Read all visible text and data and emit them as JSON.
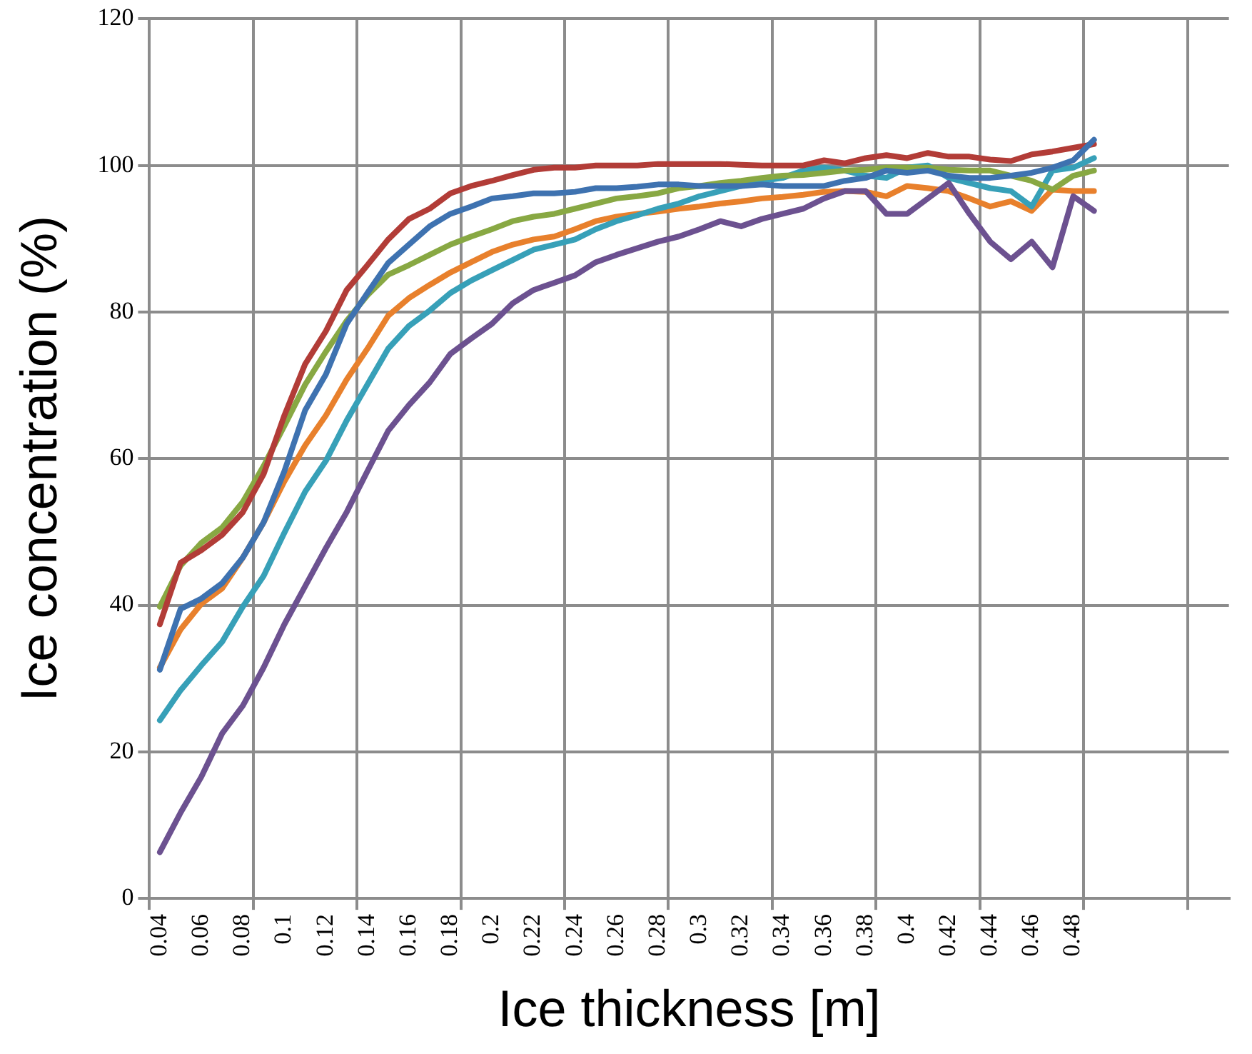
{
  "chart_data": {
    "type": "line",
    "xlabel": "Ice thickness [m]",
    "ylabel": "Ice concentration (%)",
    "categories": [
      "0.04",
      null,
      "0.06",
      null,
      "0.08",
      null,
      "0.1",
      null,
      "0.12",
      null,
      "0.14",
      null,
      "0.16",
      null,
      "0.18",
      null,
      "0.2",
      null,
      "0.22",
      null,
      "0.24",
      null,
      "0.26",
      null,
      "0.28",
      null,
      "0.3",
      null,
      "0.32",
      null,
      "0.34",
      null,
      "0.36",
      null,
      "0.38",
      null,
      "0.4",
      null,
      "0.42",
      null,
      "0.44",
      null,
      "0.46",
      null,
      "0.48",
      null,
      null,
      null,
      null,
      null,
      null,
      null
    ],
    "ylim": [
      0,
      120
    ],
    "yticks": [
      0,
      20,
      40,
      60,
      80,
      100,
      120
    ],
    "grid": true,
    "legend": false,
    "marker": "none",
    "line_style": "solid",
    "series": [
      {
        "color": "#3e72b0",
        "values": [
          31.2,
          39.5,
          40.9,
          43,
          46.5,
          51.3,
          58.3,
          66.6,
          71.5,
          78.4,
          82.6,
          86.7,
          89.2,
          91.7,
          93.4,
          94.4,
          95.5,
          95.8,
          96.2,
          96.2,
          96.4,
          96.9,
          96.9,
          97.1,
          97.4,
          97.4,
          97.2,
          97.2,
          97.2,
          97.4,
          97.2,
          97.2,
          97.2,
          97.9,
          98.3,
          99.3,
          99,
          99.3,
          98.6,
          98.3,
          98.3,
          98.6,
          99,
          99.7,
          100.7,
          103.5,
          null,
          null,
          null,
          null,
          null,
          null
        ]
      },
      {
        "color": "#b23c37",
        "values": [
          37.4,
          45.8,
          47.5,
          49.6,
          52.7,
          57.9,
          65.9,
          72.9,
          77.4,
          83,
          86.4,
          89.9,
          92.7,
          94.1,
          96.2,
          97.2,
          97.9,
          98.7,
          99.4,
          99.7,
          99.7,
          100,
          100,
          100,
          100.2,
          100.2,
          100.2,
          100.2,
          100.1,
          100,
          100,
          100,
          100.7,
          100.3,
          101,
          101.4,
          101,
          101.7,
          101.2,
          101.2,
          100.8,
          100.6,
          101.5,
          101.9,
          102.4,
          102.9,
          null,
          null,
          null,
          null,
          null,
          null
        ]
      },
      {
        "color": "#88a843",
        "values": [
          39.8,
          45.4,
          48.5,
          50.6,
          54.1,
          59,
          64.5,
          70.1,
          74.6,
          78.8,
          82.3,
          85.1,
          86.4,
          87.8,
          89.2,
          90.3,
          91.3,
          92.4,
          93,
          93.4,
          94.1,
          94.8,
          95.5,
          95.8,
          96.2,
          96.9,
          97.2,
          97.6,
          97.9,
          98.3,
          98.6,
          98.7,
          99,
          99.3,
          99.4,
          99.7,
          99.7,
          99.7,
          99.4,
          99.3,
          99.3,
          98.6,
          97.9,
          96.7,
          98.6,
          99.3,
          null,
          null,
          null,
          null,
          null,
          null
        ]
      },
      {
        "color": "#6c5190",
        "values": [
          6.3,
          11.7,
          16.6,
          22.5,
          26.3,
          31.5,
          37.4,
          42.6,
          47.8,
          52.7,
          58.3,
          63.8,
          67.3,
          70.4,
          74.3,
          76.4,
          78.4,
          81.2,
          83,
          84,
          85,
          86.8,
          87.8,
          88.7,
          89.6,
          90.3,
          91.3,
          92.4,
          91.7,
          92.7,
          93.4,
          94.1,
          95.5,
          96.5,
          96.5,
          93.4,
          93.4,
          95.5,
          97.6,
          93.4,
          89.6,
          87.2,
          89.6,
          86.1,
          95.8,
          93.8,
          null,
          null,
          null,
          null,
          null,
          null
        ]
      },
      {
        "color": "#37a0b8",
        "values": [
          24.3,
          28.4,
          31.8,
          35,
          39.8,
          44,
          49.9,
          55.5,
          59.7,
          65.2,
          70.1,
          75,
          78.1,
          80.2,
          82.6,
          84.3,
          85.7,
          87.1,
          88.5,
          89.2,
          89.9,
          91.3,
          92.4,
          93.2,
          94.1,
          94.8,
          95.8,
          96.5,
          97.2,
          97.9,
          98.3,
          99.3,
          99.7,
          99.3,
          98.6,
          98.3,
          99.7,
          100,
          98.3,
          97.6,
          96.9,
          96.5,
          94.4,
          99.3,
          99.7,
          101,
          null,
          null,
          null,
          null,
          null,
          null
        ]
      },
      {
        "color": "#e8802c",
        "values": [
          31.5,
          36.7,
          40.2,
          42.3,
          46.5,
          51.3,
          56.9,
          61.8,
          65.9,
          70.8,
          75,
          79.5,
          81.9,
          83.7,
          85.4,
          86.8,
          88.2,
          89.2,
          89.9,
          90.3,
          91.3,
          92.4,
          93,
          93.4,
          93.7,
          94.1,
          94.4,
          94.8,
          95.1,
          95.5,
          95.7,
          96,
          96.4,
          96.5,
          96.4,
          95.8,
          97.2,
          96.9,
          96.5,
          95.5,
          94.4,
          95.1,
          93.8,
          96.7,
          96.5,
          96.5,
          null,
          null,
          null,
          null,
          null,
          null
        ]
      }
    ]
  }
}
